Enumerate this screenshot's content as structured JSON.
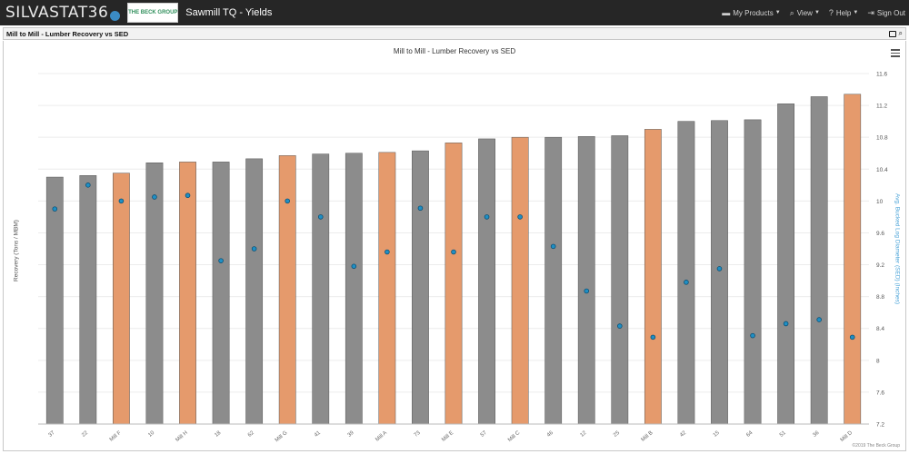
{
  "header": {
    "brand": "SILVASTAT36",
    "brand_badge_icon": "a-badge-icon",
    "logo_text": "THE BECK GROUP",
    "app_title": "Sawmill TQ - Yields",
    "nav": [
      {
        "label": "My Products",
        "icon": "folder-icon"
      },
      {
        "label": "View",
        "icon": "search-icon"
      },
      {
        "label": "Help",
        "icon": "help-icon"
      },
      {
        "label": "Sign Out",
        "icon": "sign-out-icon"
      }
    ]
  },
  "panel": {
    "title": "Mill to Mill - Lumber Recovery vs SED"
  },
  "footer": {
    "copyright": "©2019 The Beck Group"
  },
  "colors": {
    "gray_bar": "#8c8c8c",
    "orange_bar": "#e59a6c",
    "dot": "#1f8fc4",
    "nav_bg": "#262626"
  },
  "chart_data": {
    "type": "bar",
    "title": "Mill to Mill - Lumber Recovery vs SED",
    "ylabel_left": "Recovery (Tons / MBM)",
    "ylabel_right": "Avg. Bucked Log Diameter (SED) (Inches)",
    "right_axis_ticks": [
      "7.2",
      "7.6",
      "8",
      "8.4",
      "8.8",
      "9.2",
      "9.6",
      "10",
      "10.4",
      "10.8",
      "11.2",
      "11.6"
    ],
    "right_ylim": [
      7.2,
      11.6
    ],
    "grid": true,
    "legend": "none",
    "categories": [
      "37",
      "22",
      "Mill F",
      "10",
      "Mill H",
      "18",
      "62",
      "Mill G",
      "41",
      "39",
      "Mill A",
      "73",
      "Mill E",
      "57",
      "Mill C",
      "46",
      "12",
      "25",
      "Mill B",
      "42",
      "15",
      "64",
      "51",
      "36",
      "Mill D"
    ],
    "highlight": [
      false,
      false,
      true,
      false,
      true,
      false,
      false,
      true,
      false,
      false,
      true,
      false,
      true,
      false,
      true,
      false,
      false,
      false,
      true,
      false,
      false,
      false,
      false,
      false,
      true
    ],
    "series": [
      {
        "name": "Recovery",
        "type": "bar",
        "values": [
          10.3,
          10.32,
          10.35,
          10.48,
          10.49,
          10.49,
          10.53,
          10.57,
          10.59,
          10.6,
          10.61,
          10.63,
          10.73,
          10.78,
          10.8,
          10.8,
          10.81,
          10.82,
          10.9,
          11.0,
          11.01,
          11.02,
          11.22,
          11.31,
          11.34
        ]
      },
      {
        "name": "SED",
        "type": "scatter",
        "values": [
          9.9,
          10.2,
          10.0,
          10.05,
          10.07,
          9.25,
          9.4,
          10.0,
          9.8,
          9.18,
          9.36,
          9.91,
          9.36,
          9.8,
          9.8,
          9.43,
          8.87,
          8.43,
          8.29,
          8.98,
          9.15,
          8.31,
          8.46,
          8.51,
          8.29
        ]
      }
    ]
  }
}
